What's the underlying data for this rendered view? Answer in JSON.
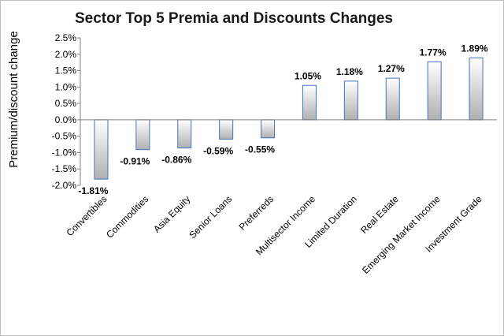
{
  "chart_data": {
    "type": "bar",
    "title": "Sector Top 5 Premia and Discounts Changes",
    "xlabel": "",
    "ylabel": "Premium/discount change",
    "ylim": [
      -2.0,
      2.5
    ],
    "yticks": [
      "2.5%",
      "2.0%",
      "1.5%",
      "1.0%",
      "0.5%",
      "0.0%",
      "-0.5%",
      "-1.0%",
      "-1.5%",
      "-2.0%"
    ],
    "ytick_values": [
      2.5,
      2.0,
      1.5,
      1.0,
      0.5,
      0.0,
      -0.5,
      -1.0,
      -1.5,
      -2.0
    ],
    "categories": [
      "Convertibles",
      "Commodities",
      "Asia Equity",
      "Senior Loans",
      "Preferreds",
      "Multisector Income",
      "Limited Duration",
      "Real Estate",
      "Emerging Market Income",
      "Investment Grade"
    ],
    "values": [
      -1.81,
      -0.91,
      -0.86,
      -0.59,
      -0.55,
      1.05,
      1.18,
      1.27,
      1.77,
      1.89
    ],
    "data_labels": [
      "-1.81%",
      "-0.91%",
      "-0.86%",
      "-0.59%",
      "-0.55%",
      "1.05%",
      "1.18%",
      "1.27%",
      "1.77%",
      "1.89%"
    ],
    "grid": false,
    "legend": "none",
    "bar_fill_top": "#ffffff",
    "bar_fill_bottom": "#b0b0b0",
    "bar_border": "#4472c4"
  }
}
